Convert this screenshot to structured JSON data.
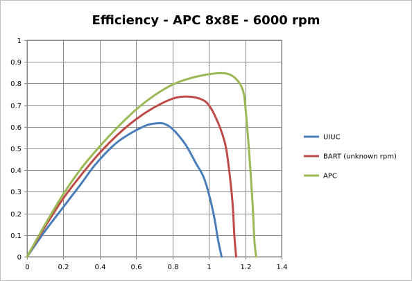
{
  "chart_data": {
    "type": "line",
    "title": "Efficiency - APC 8x8E - 6000 rpm",
    "xlabel": "",
    "ylabel": "",
    "xlim": [
      0,
      1.4
    ],
    "ylim": [
      0,
      1
    ],
    "xticks": [
      0,
      0.2,
      0.4,
      0.6,
      0.8,
      1,
      1.2,
      1.4
    ],
    "yticks": [
      0,
      0.1,
      0.2,
      0.3,
      0.4,
      0.5,
      0.6,
      0.7,
      0.8,
      0.9,
      1
    ],
    "grid": true,
    "legend_position": "right",
    "series": [
      {
        "name": "UIUC",
        "color": "#4a7ebb",
        "points": [
          [
            0,
            0
          ],
          [
            0.1,
            0.12
          ],
          [
            0.2,
            0.23
          ],
          [
            0.3,
            0.34
          ],
          [
            0.37,
            0.42
          ],
          [
            0.47,
            0.51
          ],
          [
            0.55,
            0.56
          ],
          [
            0.65,
            0.605
          ],
          [
            0.7,
            0.615
          ],
          [
            0.75,
            0.615
          ],
          [
            0.8,
            0.59
          ],
          [
            0.87,
            0.52
          ],
          [
            0.93,
            0.43
          ],
          [
            0.97,
            0.37
          ],
          [
            1.0,
            0.29
          ],
          [
            1.03,
            0.18
          ],
          [
            1.05,
            0.08
          ],
          [
            1.07,
            0
          ]
        ]
      },
      {
        "name": "BART (unknown rpm)",
        "color": "#be4b48",
        "points": [
          [
            0,
            0
          ],
          [
            0.1,
            0.14
          ],
          [
            0.2,
            0.27
          ],
          [
            0.3,
            0.38
          ],
          [
            0.4,
            0.48
          ],
          [
            0.5,
            0.565
          ],
          [
            0.6,
            0.635
          ],
          [
            0.7,
            0.69
          ],
          [
            0.8,
            0.73
          ],
          [
            0.87,
            0.74
          ],
          [
            0.95,
            0.73
          ],
          [
            1.0,
            0.7
          ],
          [
            1.05,
            0.62
          ],
          [
            1.09,
            0.52
          ],
          [
            1.11,
            0.41
          ],
          [
            1.13,
            0.25
          ],
          [
            1.14,
            0.1
          ],
          [
            1.15,
            0
          ]
        ]
      },
      {
        "name": "APC",
        "color": "#98b954",
        "points": [
          [
            0,
            0
          ],
          [
            0.1,
            0.15
          ],
          [
            0.2,
            0.29
          ],
          [
            0.3,
            0.41
          ],
          [
            0.4,
            0.51
          ],
          [
            0.5,
            0.6
          ],
          [
            0.6,
            0.68
          ],
          [
            0.7,
            0.745
          ],
          [
            0.8,
            0.795
          ],
          [
            0.9,
            0.825
          ],
          [
            1.0,
            0.843
          ],
          [
            1.08,
            0.848
          ],
          [
            1.13,
            0.835
          ],
          [
            1.17,
            0.8
          ],
          [
            1.19,
            0.76
          ],
          [
            1.2,
            0.7
          ],
          [
            1.22,
            0.5
          ],
          [
            1.24,
            0.25
          ],
          [
            1.25,
            0.08
          ],
          [
            1.26,
            0
          ]
        ]
      }
    ]
  }
}
